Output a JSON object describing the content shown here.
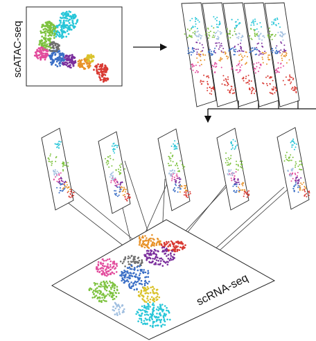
{
  "labels": {
    "atac": "scATAC-seq",
    "rna": "scRNA-seq"
  },
  "cluster_colors": [
    "#27c6d8",
    "#7dc23e",
    "#e24c9d",
    "#7b2f9d",
    "#3b6fc6",
    "#e8932b",
    "#d9c22a",
    "#d93a33",
    "#6e6e6e",
    "#a0bfe0"
  ],
  "layout": {
    "stacked_slices": 5,
    "mapped_slices": 5,
    "arrows": [
      "right-arrow",
      "down-arrow"
    ]
  }
}
